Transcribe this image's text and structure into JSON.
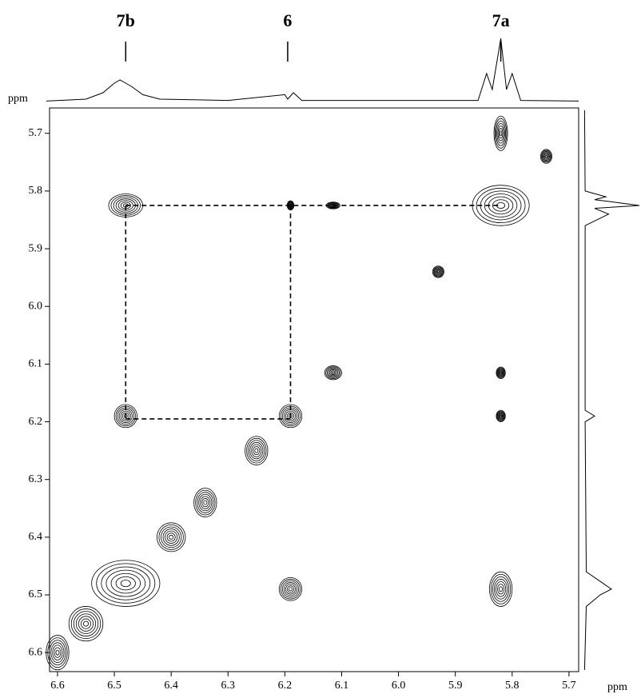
{
  "chart_data": {
    "type": "contour",
    "xlabel": "ppm",
    "ylabel": "ppm",
    "xlim": [
      6.614,
      5.683
    ],
    "ylim": [
      5.656,
      6.633
    ],
    "xticks": [
      6.6,
      6.5,
      6.4,
      6.3,
      6.2,
      6.1,
      {
        "value": 6,
        "label": "6.0"
      },
      5.9,
      5.8,
      5.7
    ],
    "yticks": [
      5.7,
      5.8,
      5.9,
      {
        "value": 6,
        "label": "6.0"
      },
      6.1,
      6.2,
      6.3,
      6.4,
      6.5,
      6.6
    ],
    "annotations": [
      {
        "text": "7b",
        "x": 6.48
      },
      {
        "text": "6",
        "x": 6.195
      },
      {
        "text": "7a",
        "x": 5.82
      }
    ],
    "peaks": {
      "x": [
        6.48,
        6.19,
        6.115,
        5.82,
        5.74,
        5.82,
        5.93,
        6.115,
        5.82,
        5.82,
        6.48,
        6.19,
        6.25,
        6.34,
        6.4,
        6.48,
        6.55,
        6.19,
        5.82,
        6.6
      ],
      "y": [
        5.825,
        5.825,
        5.825,
        5.825,
        5.74,
        5.7,
        5.94,
        6.115,
        6.115,
        6.19,
        6.19,
        6.19,
        6.25,
        6.34,
        6.4,
        6.48,
        6.55,
        6.49,
        6.49,
        6.6
      ],
      "wx": [
        0.03,
        0.006,
        0.012,
        0.05,
        0.01,
        0.012,
        0.01,
        0.015,
        0.008,
        0.008,
        0.02,
        0.02,
        0.02,
        0.02,
        0.025,
        0.06,
        0.03,
        0.02,
        0.02,
        0.02
      ],
      "wy": [
        0.02,
        0.008,
        0.006,
        0.035,
        0.012,
        0.03,
        0.01,
        0.012,
        0.01,
        0.01,
        0.02,
        0.02,
        0.025,
        0.025,
        0.025,
        0.04,
        0.03,
        0.02,
        0.03,
        0.03
      ]
    },
    "dashed_lines": [
      [
        6.48,
        5.825,
        5.82,
        5.825
      ],
      [
        6.48,
        5.825,
        6.48,
        6.195
      ],
      [
        6.19,
        5.825,
        6.19,
        6.195
      ],
      [
        6.48,
        6.195,
        6.19,
        6.195
      ]
    ],
    "top_trace": {
      "x": [
        6.63,
        6.55,
        6.52,
        6.5,
        6.49,
        6.48,
        6.47,
        6.45,
        6.42,
        6.3,
        6.2,
        6.195,
        6.185,
        6.17,
        5.86,
        5.845,
        5.835,
        5.82,
        5.81,
        5.8,
        5.785,
        5.65
      ],
      "values": [
        0.02,
        0.05,
        0.15,
        0.3,
        0.35,
        0.3,
        0.25,
        0.12,
        0.05,
        0.03,
        0.12,
        0.05,
        0.15,
        0.03,
        0.03,
        0.45,
        0.2,
        1.0,
        0.2,
        0.45,
        0.03,
        0.02
      ]
    },
    "right_trace": {
      "x": [
        5.66,
        5.8,
        5.81,
        5.815,
        5.825,
        5.83,
        5.84,
        5.86,
        6.18,
        6.19,
        6.2,
        6.46,
        6.48,
        6.49,
        6.5,
        6.52,
        6.63
      ],
      "values": [
        0.02,
        0.03,
        0.4,
        0.2,
        1.0,
        0.2,
        0.45,
        0.03,
        0.03,
        0.2,
        0.03,
        0.05,
        0.35,
        0.5,
        0.3,
        0.05,
        0.02
      ]
    }
  }
}
